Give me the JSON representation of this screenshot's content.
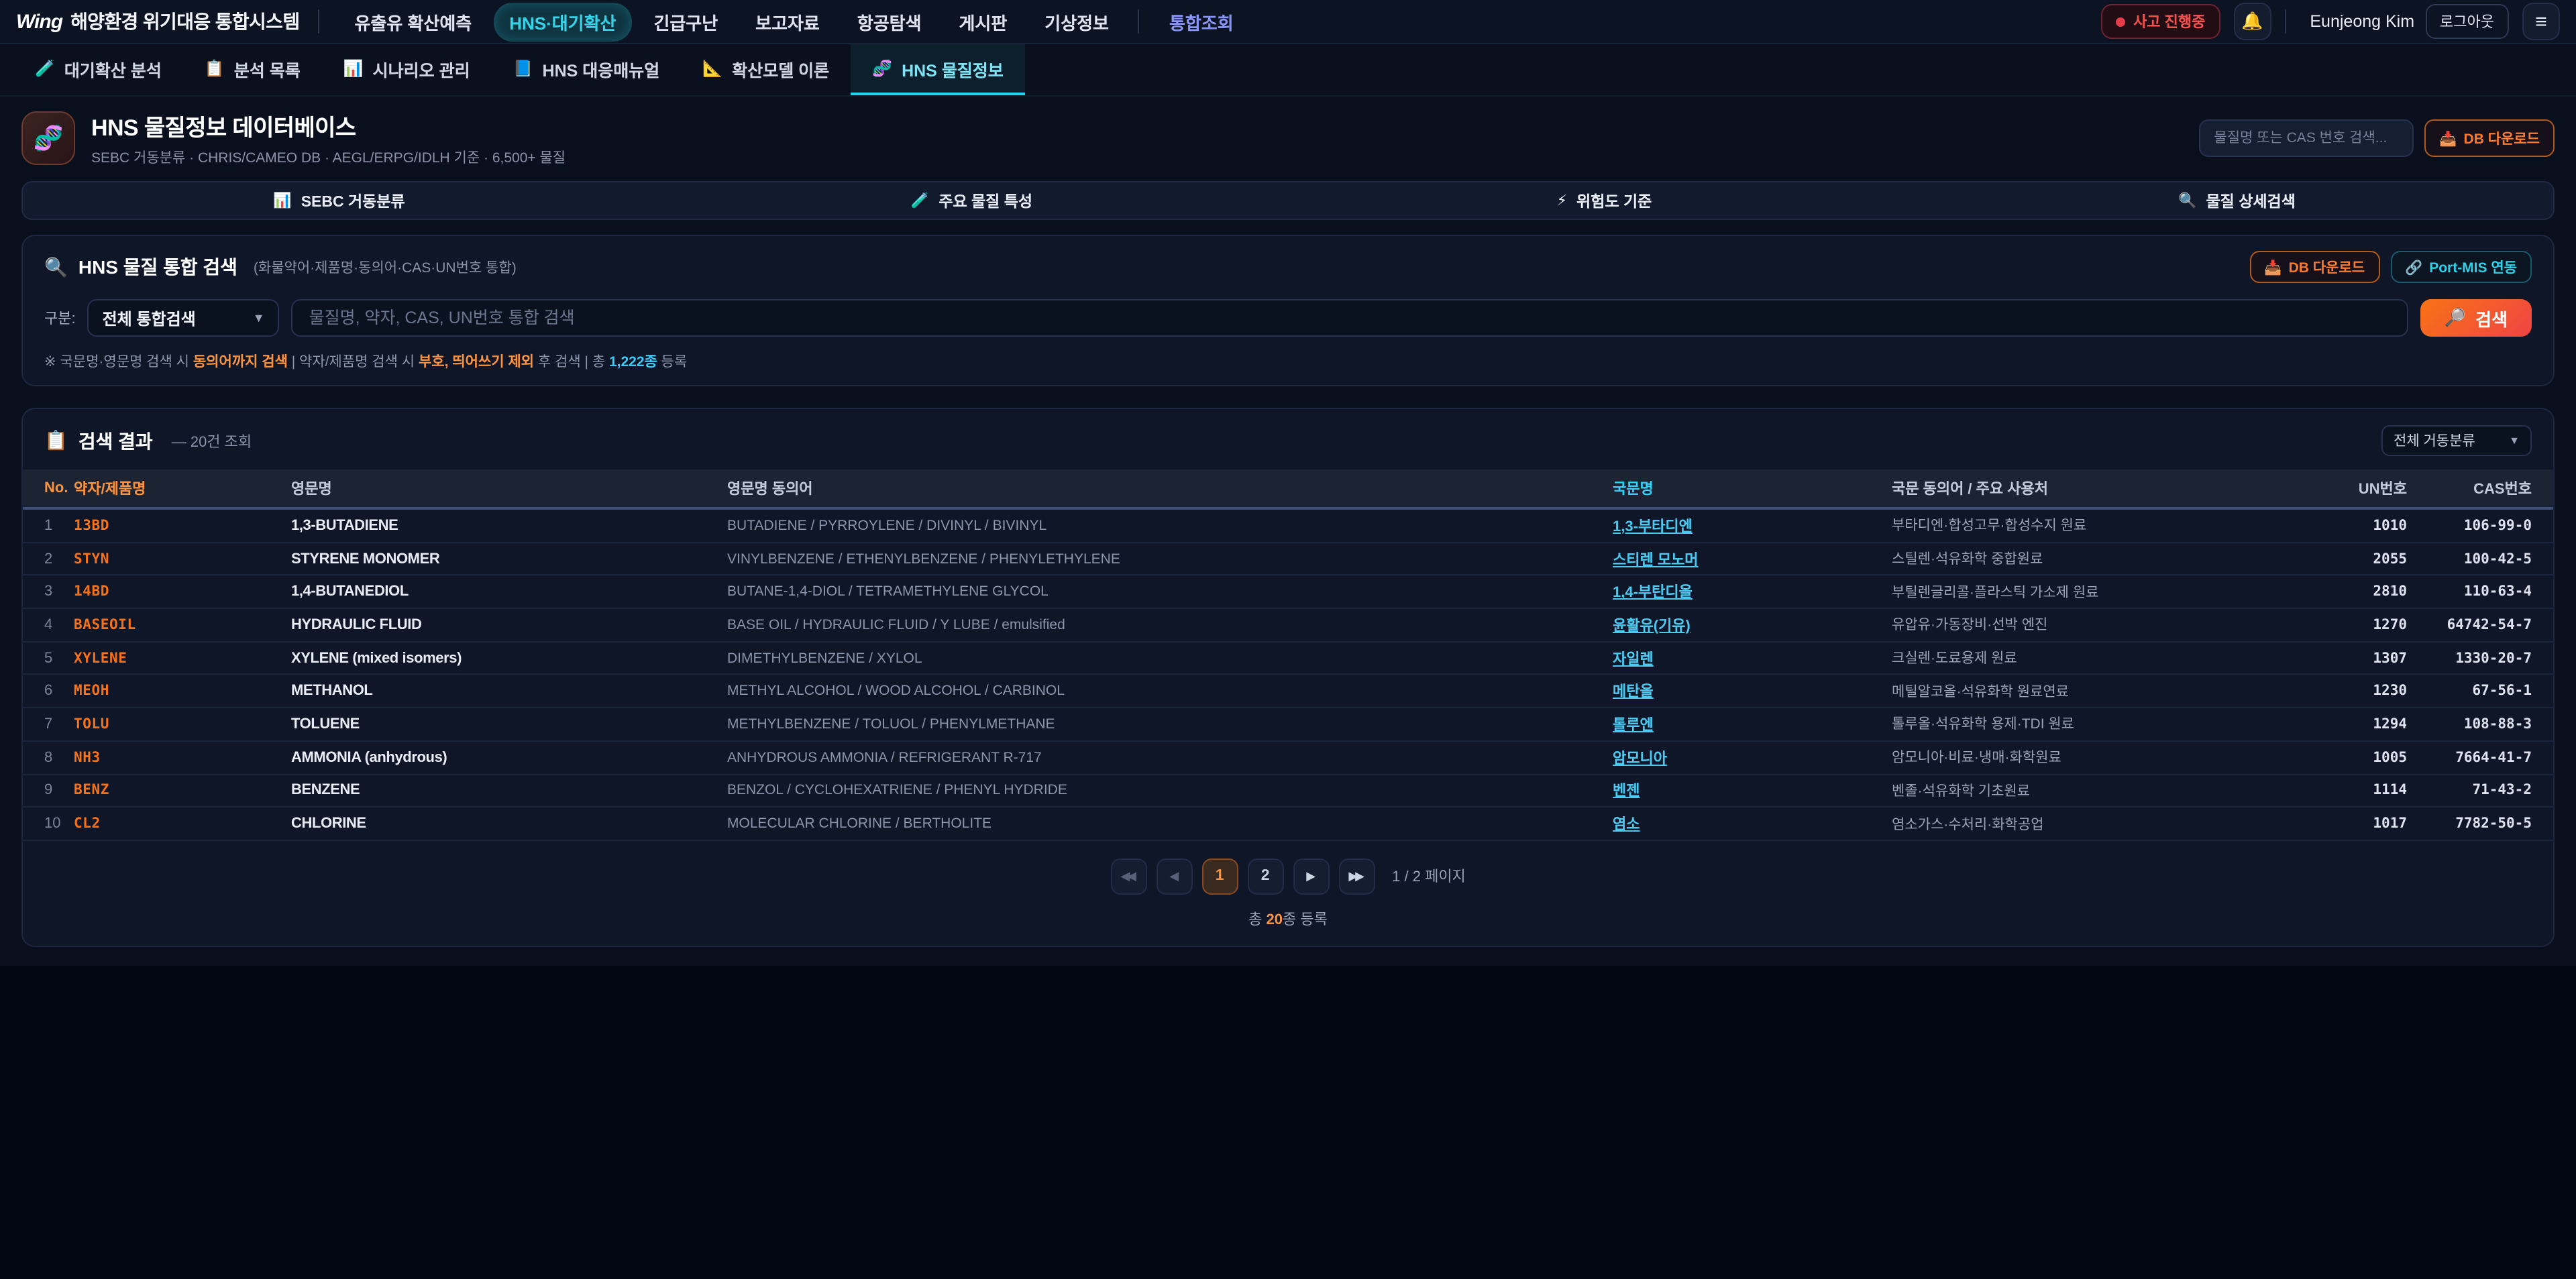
{
  "colors": {
    "accent_orange": "#f97316",
    "accent_cyan": "#22d3ee",
    "status_red": "#ef4444",
    "integrated_indigo": "#8a96f5",
    "link_cyan": "#4cc9f0"
  },
  "topbar": {
    "logo_mark": "Wing",
    "app_title": "해양환경 위기대응 통합시스템",
    "menu": [
      {
        "label": "유출유 확산예측"
      },
      {
        "label": "HNS·대기확산"
      },
      {
        "label": "긴급구난"
      },
      {
        "label": "보고자료"
      },
      {
        "label": "항공탐색"
      },
      {
        "label": "게시판"
      },
      {
        "label": "기상정보"
      }
    ],
    "integrated_menu": "통합조회",
    "incident_badge": "사고 진행중",
    "bell_icon": "🔔",
    "user_name": "Eunjeong Kim",
    "logout_label": "로그아웃",
    "hamburger_icon": "≡"
  },
  "subtabs": [
    {
      "icon": "🧪",
      "label": "대기확산 분석"
    },
    {
      "icon": "📋",
      "label": "분석 목록"
    },
    {
      "icon": "📊",
      "label": "시나리오 관리"
    },
    {
      "icon": "📘",
      "label": "HNS 대응매뉴얼"
    },
    {
      "icon": "📐",
      "label": "확산모델 이론"
    },
    {
      "icon": "🧬",
      "label": "HNS 물질정보"
    }
  ],
  "page_header": {
    "icon": "🧬",
    "title": "HNS 물질정보 데이터베이스",
    "subtitle": "SEBC 거동분류 · CHRIS/CAMEO DB · AEGL/ERPG/IDLH 기준 · 6,500+ 물질",
    "quick_search_placeholder": "물질명 또는 CAS 번호 검색...",
    "db_download_icon": "📥",
    "db_download_label": "DB 다운로드"
  },
  "category_strip": [
    {
      "icon": "📊",
      "label": "SEBC 거동분류"
    },
    {
      "icon": "🧪",
      "label": "주요 물질 특성"
    },
    {
      "icon": "⚡",
      "label": "위험도 기준"
    },
    {
      "icon": "🔍",
      "label": "물질 상세검색"
    }
  ],
  "search_panel": {
    "title_icon": "🔍",
    "title": "HNS 물질 통합 검색",
    "title_note": "(화물약어·제품명·동의어·CAS·UN번호 통합)",
    "db_download_icon": "📥",
    "db_download_label": "DB 다운로드",
    "portmis_icon": "🔗",
    "portmis_label": "Port-MIS 연동",
    "field_label": "구분:",
    "select_value": "전체 통합검색",
    "input_placeholder": "물질명, 약자, CAS, UN번호 통합 검색",
    "search_icon": "🔎",
    "search_button": "검색",
    "hint_prefix": "※ 국문명·영문명 검색 시 ",
    "hint_bold1": "동의어까지 검색",
    "hint_mid1": " | 약자/제품명 검색 시 ",
    "hint_bold2": "부호, 띄어쓰기 제외",
    "hint_mid2": " 후 검색 | 총 ",
    "hint_count": "1,222종",
    "hint_suffix": " 등록"
  },
  "results": {
    "title_icon": "📋",
    "title": "검색 결과",
    "count_note": "— 20건 조회",
    "filter_value": "전체 거동분류",
    "columns": [
      "No.",
      "약자/제품명",
      "영문명",
      "영문명 동의어",
      "국문명",
      "국문 동의어 / 주요 사용처",
      "UN번호",
      "CAS번호"
    ],
    "rows": [
      {
        "no": "1",
        "abbr": "13BD",
        "en_name": "1,3-BUTADIENE",
        "en_synonyms": "BUTADIENE / PYRROYLENE / DIVINYL / BIVINYL",
        "kr_name": "1,3-부타디엔",
        "kr_synonyms": "부타디엔·합성고무·합성수지 원료",
        "un": "1010",
        "cas": "106-99-0"
      },
      {
        "no": "2",
        "abbr": "STYN",
        "en_name": "STYRENE MONOMER",
        "en_synonyms": "VINYLBENZENE / ETHENYLBENZENE / PHENYLETHYLENE",
        "kr_name": "스티렌 모노머",
        "kr_synonyms": "스틸렌·석유화학 중합원료",
        "un": "2055",
        "cas": "100-42-5"
      },
      {
        "no": "3",
        "abbr": "14BD",
        "en_name": "1,4-BUTANEDIOL",
        "en_synonyms": "BUTANE-1,4-DIOL / TETRAMETHYLENE GLYCOL",
        "kr_name": "1,4-부탄디올",
        "kr_synonyms": "부틸렌글리콜·플라스틱 가소제 원료",
        "un": "2810",
        "cas": "110-63-4"
      },
      {
        "no": "4",
        "abbr": "BASEOIL",
        "en_name": "HYDRAULIC FLUID",
        "en_synonyms": "BASE OIL / HYDRAULIC FLUID / Y LUBE / emulsified",
        "kr_name": "윤활유(기유)",
        "kr_synonyms": "유압유·가동장비·선박 엔진",
        "un": "1270",
        "cas": "64742-54-7"
      },
      {
        "no": "5",
        "abbr": "XYLENE",
        "en_name": "XYLENE (mixed isomers)",
        "en_synonyms": "DIMETHYLBENZENE / XYLOL",
        "kr_name": "자일렌",
        "kr_synonyms": "크실렌·도료용제 원료",
        "un": "1307",
        "cas": "1330-20-7"
      },
      {
        "no": "6",
        "abbr": "MEOH",
        "en_name": "METHANOL",
        "en_synonyms": "METHYL ALCOHOL / WOOD ALCOHOL / CARBINOL",
        "kr_name": "메탄올",
        "kr_synonyms": "메틸알코올·석유화학 원료연료",
        "un": "1230",
        "cas": "67-56-1"
      },
      {
        "no": "7",
        "abbr": "TOLU",
        "en_name": "TOLUENE",
        "en_synonyms": "METHYLBENZENE / TOLUOL / PHENYLMETHANE",
        "kr_name": "톨루엔",
        "kr_synonyms": "톨루올·석유화학 용제·TDI 원료",
        "un": "1294",
        "cas": "108-88-3"
      },
      {
        "no": "8",
        "abbr": "NH3",
        "en_name": "AMMONIA (anhydrous)",
        "en_synonyms": "ANHYDROUS AMMONIA / REFRIGERANT R-717",
        "kr_name": "암모니아",
        "kr_synonyms": "암모니아·비료·냉매·화학원료",
        "un": "1005",
        "cas": "7664-41-7"
      },
      {
        "no": "9",
        "abbr": "BENZ",
        "en_name": "BENZENE",
        "en_synonyms": "BENZOL / CYCLOHEXATRIENE / PHENYL HYDRIDE",
        "kr_name": "벤젠",
        "kr_synonyms": "벤졸·석유화학 기초원료",
        "un": "1114",
        "cas": "71-43-2"
      },
      {
        "no": "10",
        "abbr": "CL2",
        "en_name": "CHLORINE",
        "en_synonyms": "MOLECULAR CHLORINE / BERTHOLITE",
        "kr_name": "염소",
        "kr_synonyms": "염소가스·수처리·화학공업",
        "un": "1017",
        "cas": "7782-50-5"
      }
    ],
    "pagination": {
      "first_icon": "◀◀",
      "prev_icon": "◀",
      "pages": [
        "1",
        "2"
      ],
      "next_icon": "▶",
      "last_icon": "▶▶",
      "info": "1 / 2 페이지",
      "total_prefix": "총 ",
      "total_count": "20",
      "total_suffix": "종 등록"
    }
  }
}
